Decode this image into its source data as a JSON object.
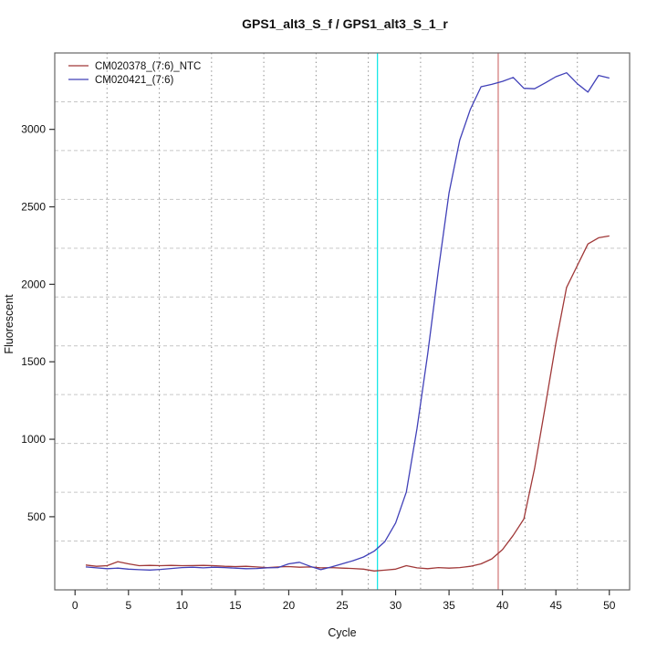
{
  "title": "GPS1_alt3_S_f / GPS1_alt3_S_1_r",
  "chart_data": {
    "type": "line",
    "title": "GPS1_alt3_S_f / GPS1_alt3_S_1_r",
    "xlabel": "Cycle",
    "ylabel": "Fluorescent",
    "xlim": [
      -1.9,
      51.9
    ],
    "ylim": [
      28,
      3493
    ],
    "x_ticks": [
      0,
      5,
      10,
      15,
      20,
      25,
      30,
      35,
      40,
      45,
      50
    ],
    "y_ticks": [
      500,
      1000,
      1500,
      2000,
      2500,
      3000
    ],
    "grid_divisions": 11,
    "grid_h_color": "#c6c6c6",
    "grid_v_color": "#8a8a8a",
    "box_color": "#666666",
    "tick_color": "#333333",
    "legend_position": "top-left",
    "x": [
      1,
      2,
      3,
      4,
      5,
      6,
      7,
      8,
      9,
      10,
      11,
      12,
      13,
      14,
      15,
      16,
      17,
      18,
      19,
      20,
      21,
      22,
      23,
      24,
      25,
      26,
      27,
      28,
      29,
      30,
      31,
      32,
      33,
      34,
      35,
      36,
      37,
      38,
      39,
      40,
      41,
      42,
      43,
      44,
      45,
      46,
      47,
      48,
      49,
      50
    ],
    "series": [
      {
        "name": "CM020378_(7:6)_NTC",
        "color": "#A03838",
        "values": [
          188,
          180,
          184,
          210,
          196,
          184,
          186,
          184,
          186,
          184,
          185,
          186,
          184,
          180,
          178,
          180,
          176,
          172,
          176,
          178,
          174,
          176,
          170,
          172,
          168,
          166,
          162,
          150,
          155,
          162,
          184,
          170,
          165,
          172,
          168,
          172,
          180,
          196,
          228,
          288,
          380,
          485,
          810,
          1210,
          1620,
          1980,
          2120,
          2260,
          2300,
          2312
        ]
      },
      {
        "name": "CM020421_(7:6)",
        "color": "#4040B8",
        "values": [
          176,
          170,
          165,
          168,
          162,
          158,
          156,
          160,
          166,
          172,
          174,
          170,
          174,
          172,
          168,
          165,
          166,
          170,
          172,
          196,
          206,
          180,
          158,
          176,
          196,
          216,
          240,
          278,
          340,
          460,
          660,
          1070,
          1550,
          2090,
          2590,
          2930,
          3130,
          3275,
          3290,
          3310,
          3335,
          3265,
          3262,
          3300,
          3340,
          3365,
          3295,
          3240,
          3348,
          3331
        ]
      }
    ],
    "vlines": [
      {
        "name": "threshold-cycle-line-cyan",
        "x": 28.3,
        "color": "#19E8E8"
      },
      {
        "name": "threshold-cycle-line-red",
        "x": 39.6,
        "color": "#D47F7F"
      }
    ]
  }
}
